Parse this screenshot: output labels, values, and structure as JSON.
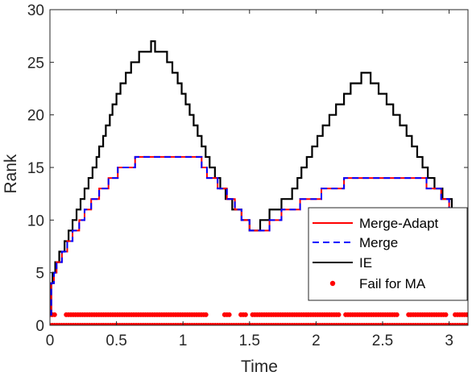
{
  "chart_data": {
    "type": "line",
    "xlabel": "Time",
    "ylabel": "Rank",
    "xlim": [
      0,
      3.1416
    ],
    "ylim": [
      0,
      30
    ],
    "xticks": [
      0,
      0.5,
      1,
      1.5,
      2,
      2.5,
      3
    ],
    "xtick_labels": [
      "0",
      "0.5",
      "1",
      "1.5",
      "2",
      "2.5",
      "3"
    ],
    "yticks": [
      0,
      5,
      10,
      15,
      20,
      25,
      30
    ],
    "ytick_labels": [
      "0",
      "5",
      "10",
      "15",
      "20",
      "25",
      "30"
    ],
    "grid": false,
    "legend_position": "lower-right",
    "series": [
      {
        "name": "Merge-Adapt",
        "style": "solid",
        "color": "#ff0000",
        "points": [
          [
            0,
            1
          ],
          [
            0.01,
            4
          ],
          [
            0.03,
            5
          ],
          [
            0.05,
            6
          ],
          [
            0.09,
            7
          ],
          [
            0.13,
            8
          ],
          [
            0.17,
            9
          ],
          [
            0.22,
            10
          ],
          [
            0.26,
            11
          ],
          [
            0.31,
            12
          ],
          [
            0.37,
            13
          ],
          [
            0.44,
            14
          ],
          [
            0.51,
            15
          ],
          [
            0.64,
            16
          ],
          [
            1.1,
            16
          ],
          [
            1.14,
            15
          ],
          [
            1.18,
            14
          ],
          [
            1.26,
            13
          ],
          [
            1.33,
            12
          ],
          [
            1.39,
            11
          ],
          [
            1.44,
            10
          ],
          [
            1.5,
            9
          ],
          [
            1.6,
            9
          ],
          [
            1.65,
            10
          ],
          [
            1.74,
            11
          ],
          [
            1.88,
            12
          ],
          [
            2.04,
            13
          ],
          [
            2.21,
            14
          ],
          [
            2.79,
            14
          ],
          [
            2.83,
            13
          ],
          [
            2.94,
            12
          ],
          [
            3.0,
            11
          ],
          [
            3.1,
            11
          ],
          [
            3.14,
            10
          ]
        ]
      },
      {
        "name": "Merge",
        "style": "dashed",
        "color": "#0000ff",
        "points": [
          [
            0,
            1
          ],
          [
            0.01,
            4
          ],
          [
            0.03,
            5
          ],
          [
            0.05,
            6
          ],
          [
            0.09,
            7
          ],
          [
            0.13,
            8
          ],
          [
            0.17,
            9
          ],
          [
            0.22,
            10
          ],
          [
            0.26,
            11
          ],
          [
            0.31,
            12
          ],
          [
            0.37,
            13
          ],
          [
            0.44,
            14
          ],
          [
            0.51,
            15
          ],
          [
            0.64,
            16
          ],
          [
            1.1,
            16
          ],
          [
            1.14,
            15
          ],
          [
            1.18,
            14
          ],
          [
            1.26,
            13
          ],
          [
            1.33,
            12
          ],
          [
            1.39,
            11
          ],
          [
            1.44,
            10
          ],
          [
            1.5,
            9
          ],
          [
            1.6,
            9
          ],
          [
            1.65,
            10
          ],
          [
            1.74,
            11
          ],
          [
            1.88,
            12
          ],
          [
            2.04,
            13
          ],
          [
            2.21,
            14
          ],
          [
            2.79,
            14
          ],
          [
            2.83,
            13
          ],
          [
            2.94,
            12
          ],
          [
            3.0,
            11
          ],
          [
            3.1,
            11
          ],
          [
            3.14,
            10
          ]
        ]
      },
      {
        "name": "IE",
        "style": "solid",
        "color": "#000000",
        "points": [
          [
            0,
            1
          ],
          [
            0.01,
            4
          ],
          [
            0.02,
            5
          ],
          [
            0.04,
            6
          ],
          [
            0.07,
            7
          ],
          [
            0.11,
            8
          ],
          [
            0.14,
            9
          ],
          [
            0.17,
            10
          ],
          [
            0.2,
            11
          ],
          [
            0.23,
            12
          ],
          [
            0.26,
            13
          ],
          [
            0.29,
            14
          ],
          [
            0.32,
            15
          ],
          [
            0.35,
            16
          ],
          [
            0.37,
            17
          ],
          [
            0.4,
            18
          ],
          [
            0.42,
            19
          ],
          [
            0.45,
            20
          ],
          [
            0.47,
            21
          ],
          [
            0.5,
            22
          ],
          [
            0.53,
            23
          ],
          [
            0.57,
            24
          ],
          [
            0.61,
            25
          ],
          [
            0.67,
            26
          ],
          [
            0.76,
            27
          ],
          [
            0.79,
            26
          ],
          [
            0.88,
            25
          ],
          [
            0.92,
            24
          ],
          [
            0.96,
            23
          ],
          [
            0.99,
            22
          ],
          [
            1.02,
            21
          ],
          [
            1.05,
            20
          ],
          [
            1.08,
            19
          ],
          [
            1.11,
            18
          ],
          [
            1.14,
            17
          ],
          [
            1.17,
            16
          ],
          [
            1.2,
            15
          ],
          [
            1.24,
            14
          ],
          [
            1.28,
            13
          ],
          [
            1.32,
            12
          ],
          [
            1.37,
            11
          ],
          [
            1.44,
            10
          ],
          [
            1.5,
            9
          ],
          [
            1.58,
            10
          ],
          [
            1.65,
            11
          ],
          [
            1.74,
            12
          ],
          [
            1.82,
            13
          ],
          [
            1.86,
            14
          ],
          [
            1.89,
            15
          ],
          [
            1.93,
            16
          ],
          [
            1.97,
            17
          ],
          [
            2.01,
            18
          ],
          [
            2.05,
            19
          ],
          [
            2.1,
            20
          ],
          [
            2.15,
            21
          ],
          [
            2.21,
            22
          ],
          [
            2.26,
            23
          ],
          [
            2.34,
            24
          ],
          [
            2.41,
            23
          ],
          [
            2.47,
            22
          ],
          [
            2.53,
            21
          ],
          [
            2.58,
            20
          ],
          [
            2.63,
            19
          ],
          [
            2.68,
            18
          ],
          [
            2.72,
            17
          ],
          [
            2.76,
            16
          ],
          [
            2.8,
            15
          ],
          [
            2.84,
            14
          ],
          [
            2.89,
            13
          ],
          [
            2.95,
            12
          ],
          [
            3.02,
            11
          ],
          [
            3.13,
            11
          ],
          [
            3.14,
            10
          ]
        ]
      },
      {
        "name": "Fail for MA",
        "style": "markers",
        "color": "#ff0000",
        "y_levels": [
          0,
          1
        ],
        "x_range": [
          0,
          3.14
        ],
        "gaps_at_level_1": [
          [
            0.04,
            0.12
          ],
          [
            1.18,
            1.3
          ],
          [
            1.36,
            1.42
          ],
          [
            1.48,
            1.52
          ],
          [
            2.18,
            2.22
          ],
          [
            2.62,
            2.68
          ],
          [
            2.98,
            3.04
          ]
        ]
      }
    ]
  }
}
